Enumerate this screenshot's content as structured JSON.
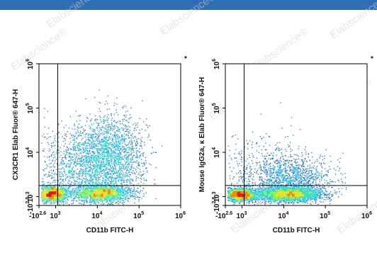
{
  "brand": {
    "bar_color": "#2f6db5",
    "watermark_text": "Elabscience®"
  },
  "chart_data": [
    {
      "type": "scatter",
      "style": "flow-cytometry-density",
      "title": "",
      "xlabel": "CD11b FITC-H",
      "ylabel": "CX3CR1 Elab Fluor® 647-H",
      "x_scale": "log",
      "y_scale": "log",
      "xlim_exp": [
        2.6,
        6
      ],
      "ylim_exp": [
        2.8,
        6
      ],
      "x_ticks": [
        {
          "base": "-10",
          "exp": "2.6",
          "value_exp": 2.6
        },
        {
          "base": "10",
          "exp": "3",
          "value_exp": 3
        },
        {
          "base": "10",
          "exp": "4",
          "value_exp": 4
        },
        {
          "base": "10",
          "exp": "5",
          "value_exp": 5
        },
        {
          "base": "10",
          "exp": "6",
          "value_exp": 6
        }
      ],
      "y_ticks": [
        {
          "base": "-10",
          "exp": "2.8",
          "value_exp": 2.8
        },
        {
          "base": "10",
          "exp": "3",
          "value_exp": 3
        },
        {
          "base": "10",
          "exp": "4",
          "value_exp": 4
        },
        {
          "base": "10",
          "exp": "5",
          "value_exp": 5
        },
        {
          "base": "10",
          "exp": "6",
          "value_exp": 6
        }
      ],
      "quadrant_gate": {
        "x_exp": 3.05,
        "y_exp": 3.25
      },
      "corner_mark": "*",
      "populations": [
        {
          "center_exp": [
            2.9,
            3.07
          ],
          "spread_exp": [
            0.2,
            0.09
          ],
          "weight": 0.22
        },
        {
          "center_exp": [
            4.1,
            3.08
          ],
          "spread_exp": [
            0.35,
            0.1
          ],
          "weight": 0.24
        },
        {
          "center_exp": [
            4.3,
            3.9
          ],
          "spread_exp": [
            0.42,
            0.45
          ],
          "weight": 0.3
        },
        {
          "center_exp": [
            3.6,
            3.6
          ],
          "spread_exp": [
            0.6,
            0.55
          ],
          "weight": 0.24
        }
      ]
    },
    {
      "type": "scatter",
      "style": "flow-cytometry-density",
      "title": "",
      "xlabel": "CD11b FITC-H",
      "ylabel": "Mouse IgG2a, κ Elab Fluor® 647-H",
      "x_scale": "log",
      "y_scale": "log",
      "xlim_exp": [
        2.6,
        6
      ],
      "ylim_exp": [
        2.8,
        6
      ],
      "x_ticks": [
        {
          "base": "-10",
          "exp": "2.6",
          "value_exp": 2.6
        },
        {
          "base": "10",
          "exp": "3",
          "value_exp": 3
        },
        {
          "base": "10",
          "exp": "4",
          "value_exp": 4
        },
        {
          "base": "10",
          "exp": "5",
          "value_exp": 5
        },
        {
          "base": "10",
          "exp": "6",
          "value_exp": 6
        }
      ],
      "y_ticks": [
        {
          "base": "-10",
          "exp": "2.8",
          "value_exp": 2.8
        },
        {
          "base": "10",
          "exp": "3",
          "value_exp": 3
        },
        {
          "base": "10",
          "exp": "4",
          "value_exp": 4
        },
        {
          "base": "10",
          "exp": "5",
          "value_exp": 5
        },
        {
          "base": "10",
          "exp": "6",
          "value_exp": 6
        }
      ],
      "quadrant_gate": {
        "x_exp": 3.05,
        "y_exp": 3.25
      },
      "corner_mark": "*",
      "populations": [
        {
          "center_exp": [
            2.95,
            3.05
          ],
          "spread_exp": [
            0.18,
            0.07
          ],
          "weight": 0.3
        },
        {
          "center_exp": [
            4.1,
            3.06
          ],
          "spread_exp": [
            0.4,
            0.08
          ],
          "weight": 0.42
        },
        {
          "center_exp": [
            4.2,
            3.4
          ],
          "spread_exp": [
            0.5,
            0.25
          ],
          "weight": 0.2
        },
        {
          "center_exp": [
            3.5,
            3.5
          ],
          "spread_exp": [
            0.6,
            0.5
          ],
          "weight": 0.08
        }
      ]
    }
  ]
}
